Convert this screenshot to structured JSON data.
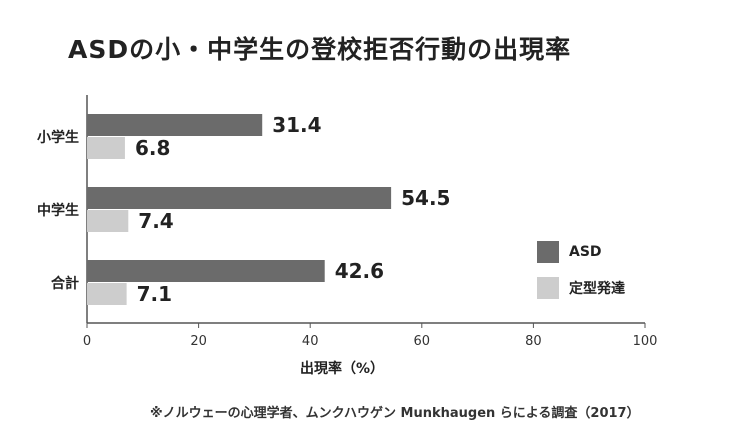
{
  "title": "ASDの小・中学生の登校拒否行動の出現率",
  "colors": {
    "asd": "#6b6b6b",
    "typical": "#cdcdcd",
    "axis": "#555555"
  },
  "legend": [
    {
      "label": "ASD",
      "color": "#6b6b6b"
    },
    {
      "label": "定型発達",
      "color": "#cdcdcd"
    }
  ],
  "xlabel": "出現率（%）",
  "source": "※ノルウェーの心理学者、ムンクハウゲン Munkhaugen らによる調査（2017）",
  "chart_data": {
    "type": "bar",
    "orientation": "horizontal",
    "title": "ASDの小・中学生の登校拒否行動の出現率",
    "xlabel": "出現率（%）",
    "ylabel": "",
    "categories": [
      "小学生",
      "中学生",
      "合計"
    ],
    "series": [
      {
        "name": "ASD",
        "values": [
          31.4,
          54.5,
          42.6
        ]
      },
      {
        "name": "定型発達",
        "values": [
          6.8,
          7.4,
          7.1
        ]
      }
    ],
    "value_labels": [
      [
        "31.4",
        "54.5",
        "42.6"
      ],
      [
        "6.8",
        "7.4",
        "7.1"
      ]
    ],
    "xlim": [
      0,
      100
    ],
    "xticks": [
      "0",
      "20",
      "40",
      "60",
      "80",
      "100"
    ],
    "grid": false,
    "legend_position": "right"
  }
}
